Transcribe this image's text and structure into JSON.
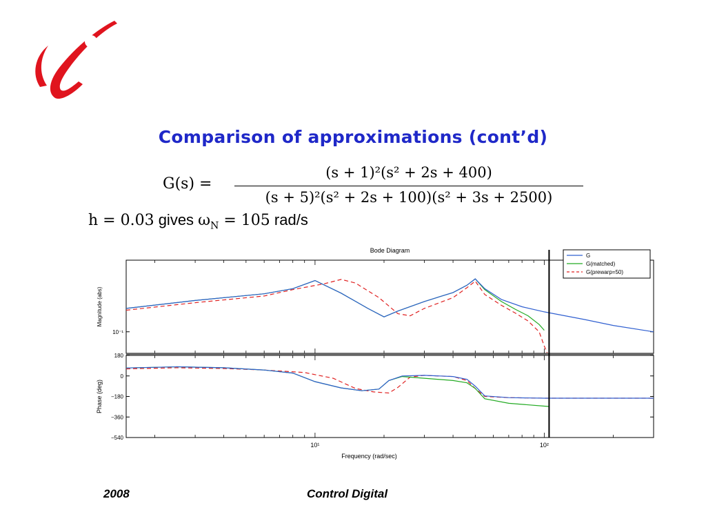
{
  "slide": {
    "title": "Comparison of approximations (cont’d)",
    "formula": {
      "lhs": "G(s) =",
      "numerator": "(s + 1)²(s² + 2s + 400)",
      "denominator": "(s + 5)²(s² + 2s + 100)(s² + 3s + 2500)"
    },
    "line2": {
      "math1": "h = 0.03",
      "text1": " gives ",
      "math2": "ω",
      "math2_sub": "N",
      "math3": " = 105",
      "text2": " rad/s"
    },
    "footer": {
      "year": "2008",
      "course": "Control Digital"
    }
  },
  "colors": {
    "title": "#1f28c8",
    "logo": "#e0141e",
    "G": "#2f5fd0",
    "G_matched": "#22aa22",
    "G_prewarp": "#e02020"
  },
  "icons": {
    "logo": "i-logo-icon"
  },
  "chart_data": {
    "type": "line",
    "title": "Bode Diagram",
    "xlabel": "Frequency  (rad/sec)",
    "x_scale": "log",
    "xlim": [
      1.5,
      300
    ],
    "x_ticks": [
      {
        "value": 10,
        "label": "10¹"
      },
      {
        "value": 100,
        "label": "10²"
      }
    ],
    "vertical_marker": 105,
    "legend": {
      "placement": "top-right",
      "entries": [
        "G",
        "G(matched)",
        "G(prewarp=50)"
      ]
    },
    "magnitude": {
      "ylabel": "Magnitude (abs)",
      "y_scale": "log",
      "ylim": [
        0.025,
        10
      ],
      "y_ticks": [
        {
          "value": 0.1,
          "label": "10⁻¹"
        }
      ],
      "series": [
        {
          "name": "G",
          "points": [
            [
              1.5,
              0.45
            ],
            [
              3,
              0.75
            ],
            [
              6,
              1.15
            ],
            [
              8,
              1.6
            ],
            [
              10,
              2.7
            ],
            [
              13,
              1.2
            ],
            [
              17,
              0.45
            ],
            [
              20,
              0.26
            ],
            [
              23,
              0.38
            ],
            [
              30,
              0.7
            ],
            [
              40,
              1.25
            ],
            [
              46,
              2.0
            ],
            [
              50,
              3.0
            ],
            [
              55,
              1.6
            ],
            [
              65,
              0.8
            ],
            [
              80,
              0.5
            ],
            [
              100,
              0.36
            ],
            [
              150,
              0.22
            ],
            [
              200,
              0.15
            ],
            [
              300,
              0.1
            ]
          ]
        },
        {
          "name": "G(matched)",
          "points": [
            [
              1.5,
              0.45
            ],
            [
              3,
              0.75
            ],
            [
              6,
              1.15
            ],
            [
              8,
              1.6
            ],
            [
              10,
              2.7
            ],
            [
              13,
              1.2
            ],
            [
              17,
              0.45
            ],
            [
              20,
              0.26
            ],
            [
              23,
              0.38
            ],
            [
              30,
              0.7
            ],
            [
              40,
              1.25
            ],
            [
              46,
              2.0
            ],
            [
              50,
              3.0
            ],
            [
              55,
              1.5
            ],
            [
              65,
              0.7
            ],
            [
              75,
              0.42
            ],
            [
              85,
              0.28
            ],
            [
              95,
              0.16
            ],
            [
              100,
              0.11
            ]
          ]
        },
        {
          "name": "G(prewarp=50)",
          "points": [
            [
              1.5,
              0.4
            ],
            [
              3,
              0.65
            ],
            [
              6,
              1.0
            ],
            [
              8,
              1.5
            ],
            [
              11,
              2.2
            ],
            [
              13,
              2.9
            ],
            [
              15,
              2.3
            ],
            [
              19,
              0.9
            ],
            [
              23,
              0.32
            ],
            [
              26,
              0.28
            ],
            [
              30,
              0.45
            ],
            [
              40,
              0.9
            ],
            [
              46,
              1.7
            ],
            [
              50,
              2.6
            ],
            [
              55,
              1.1
            ],
            [
              65,
              0.55
            ],
            [
              75,
              0.33
            ],
            [
              85,
              0.2
            ],
            [
              95,
              0.1
            ],
            [
              100,
              0.04
            ],
            [
              103,
              0.026
            ]
          ]
        }
      ]
    },
    "phase": {
      "ylabel": "Phase (deg)",
      "ylim": [
        -540,
        180
      ],
      "y_ticks": [
        {
          "value": 180,
          "label": "180"
        },
        {
          "value": 0,
          "label": "0"
        },
        {
          "value": -180,
          "label": "−180"
        },
        {
          "value": -360,
          "label": "−360"
        },
        {
          "value": -540,
          "label": "−540"
        }
      ],
      "series": [
        {
          "name": "G",
          "points": [
            [
              1.5,
              70
            ],
            [
              2.5,
              80
            ],
            [
              4,
              72
            ],
            [
              6,
              52
            ],
            [
              8,
              25
            ],
            [
              10,
              -50
            ],
            [
              13,
              -105
            ],
            [
              16,
              -130
            ],
            [
              19,
              -115
            ],
            [
              21,
              -40
            ],
            [
              24,
              0
            ],
            [
              30,
              5
            ],
            [
              40,
              -5
            ],
            [
              46,
              -30
            ],
            [
              50,
              -90
            ],
            [
              55,
              -175
            ],
            [
              70,
              -190
            ],
            [
              100,
              -195
            ],
            [
              300,
              -195
            ]
          ]
        },
        {
          "name": "G(matched)",
          "points": [
            [
              1.5,
              70
            ],
            [
              2.5,
              80
            ],
            [
              4,
              72
            ],
            [
              6,
              52
            ],
            [
              8,
              25
            ],
            [
              10,
              -50
            ],
            [
              13,
              -105
            ],
            [
              16,
              -130
            ],
            [
              19,
              -115
            ],
            [
              21,
              -40
            ],
            [
              24,
              -5
            ],
            [
              30,
              -20
            ],
            [
              40,
              -40
            ],
            [
              46,
              -60
            ],
            [
              50,
              -110
            ],
            [
              55,
              -200
            ],
            [
              70,
              -240
            ],
            [
              100,
              -265
            ],
            [
              105,
              -268
            ]
          ]
        },
        {
          "name": "G(prewarp=50)",
          "points": [
            [
              1.5,
              62
            ],
            [
              2.5,
              72
            ],
            [
              4,
              65
            ],
            [
              6,
              52
            ],
            [
              9,
              30
            ],
            [
              12,
              -20
            ],
            [
              15,
              -110
            ],
            [
              18,
              -140
            ],
            [
              21,
              -150
            ],
            [
              23,
              -100
            ],
            [
              26,
              -10
            ],
            [
              30,
              5
            ],
            [
              40,
              -5
            ],
            [
              46,
              -40
            ],
            [
              50,
              -110
            ],
            [
              55,
              -180
            ],
            [
              70,
              -190
            ],
            [
              100,
              -195
            ],
            [
              300,
              -195
            ]
          ]
        }
      ]
    }
  }
}
